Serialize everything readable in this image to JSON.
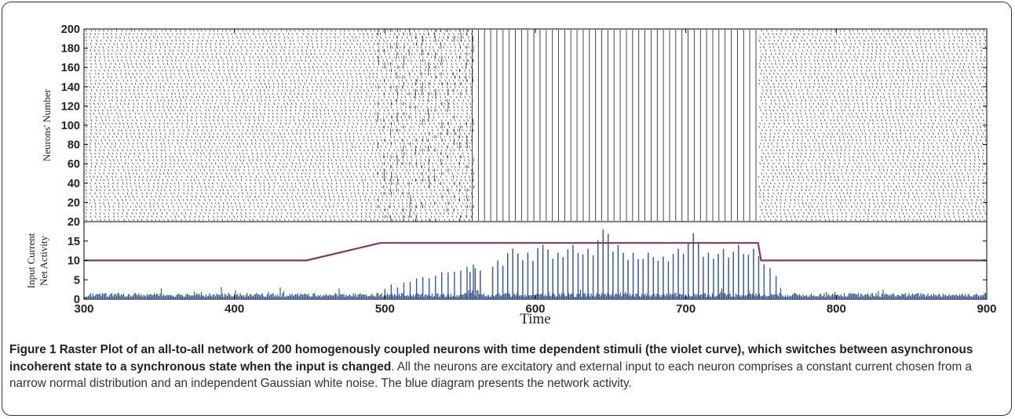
{
  "chart_data": [
    {
      "type": "scatter",
      "name": "raster",
      "ylabel": "Neurons' Number",
      "yticks": [
        20,
        40,
        60,
        80,
        100,
        120,
        140,
        160,
        180,
        200
      ],
      "xlim": [
        300,
        900
      ],
      "ylim": [
        0,
        200
      ],
      "neurons": 200,
      "regions": [
        {
          "x": [
            300,
            450
          ],
          "state": "asynchronous"
        },
        {
          "x": [
            450,
            560
          ],
          "state": "transition"
        },
        {
          "x": [
            560,
            750
          ],
          "state": "synchronous"
        },
        {
          "x": [
            750,
            900
          ],
          "state": "asynchronous"
        }
      ]
    },
    {
      "type": "line",
      "ylabel": "Input Current\nNet Activity",
      "xlabel": "Time",
      "xticks": [
        300,
        400,
        500,
        600,
        700,
        800,
        900
      ],
      "yticks": [
        0,
        5,
        10,
        15,
        20
      ],
      "xlim": [
        300,
        900
      ],
      "ylim": [
        0,
        20
      ],
      "series": [
        {
          "x": [
            300,
            448,
            497,
            748,
            750,
            900
          ],
          "y": [
            10,
            10,
            14.5,
            14.5,
            10,
            10
          ],
          "color": "#7b3b63"
        },
        {
          "type": "bar",
          "color": "#3d5a8f",
          "baseline_x": [
            300,
            900
          ],
          "baseline_y": [
            1.5,
            1.5
          ],
          "peaks_x": [
            560,
            575,
            585,
            595,
            605,
            615,
            625,
            635,
            645,
            655,
            665,
            675,
            685,
            695,
            705,
            715,
            725,
            735,
            745
          ],
          "peaks_y": [
            8,
            10,
            13,
            12,
            14,
            12,
            14,
            13,
            18,
            14,
            12,
            12,
            11,
            13,
            17,
            12,
            13,
            14,
            13
          ]
        }
      ]
    }
  ],
  "caption": {
    "lead": "Figure 1 Raster Plot of an all-to-all network of 200 homogenously coupled neurons with time dependent stimuli (the violet curve), which switches between asynchronous incoherent state to a synchronous state when the input is changed",
    "body": ". All the neurons are excitatory and external input to each neuron comprises a constant current chosen from a narrow normal distribution and an independent Gaussian white noise. The blue diagram presents the network activity."
  }
}
